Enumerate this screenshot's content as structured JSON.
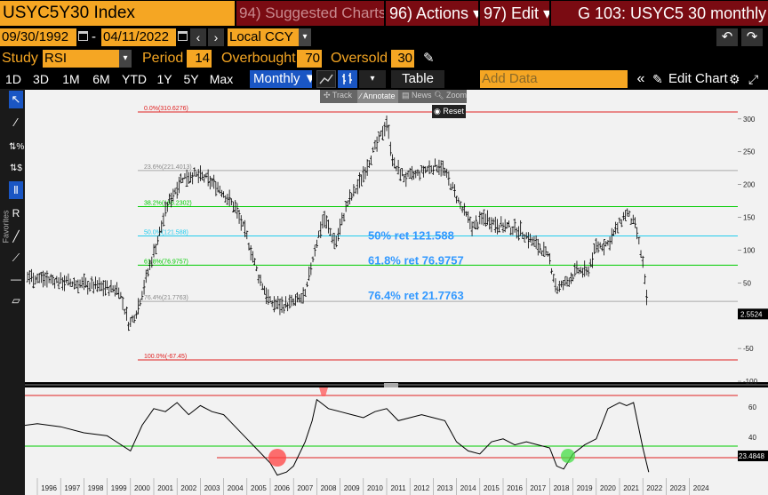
{
  "header": {
    "ticker": "USYC5Y30 Index",
    "suggested": "94) Suggested Charts",
    "actions": "96) Actions ▾",
    "edit": "97) Edit ▾",
    "gtitle": "G 103: USYC5 30 monthly"
  },
  "range": {
    "start": "09/30/1992",
    "end": "04/11/2022",
    "currency": "Local CCY"
  },
  "study": {
    "label": "Study",
    "name": "RSI",
    "period_label": "Period",
    "period": "14",
    "overbought_label": "Overbought",
    "overbought": "70",
    "oversold_label": "Oversold",
    "oversold": "30"
  },
  "toolbar": {
    "periods": [
      "1D",
      "3D",
      "1M",
      "6M",
      "YTD",
      "1Y",
      "5Y",
      "Max"
    ],
    "frequency": "Monthly ▼",
    "table": "Table",
    "add_data_placeholder": "Add Data",
    "edit_chart": "Edit Chart"
  },
  "float_tools": {
    "track": "Track",
    "annotate": "Annotate",
    "news": "News",
    "zoom": "Zoom",
    "reset": "Reset"
  },
  "left_tools": {
    "favorites": "Favorites"
  },
  "colors": {
    "orange": "#f5a623",
    "darkred": "#7a0b12",
    "blue_accent": "#1a56c4",
    "annotation_blue": "#3399ff",
    "fib_red": "#e02020",
    "fib_green": "#00cc00",
    "fib_cyan": "#22ccee",
    "fib_gray": "#aaaaaa"
  },
  "chart_data": [
    {
      "type": "ohlc",
      "x_years": [
        "1996",
        "1997",
        "1998",
        "1999",
        "2000",
        "2001",
        "2002",
        "2003",
        "2004",
        "2005",
        "2006",
        "2007",
        "2008",
        "2009",
        "2010",
        "2011",
        "2012",
        "2013",
        "2014",
        "2015",
        "2016",
        "2017",
        "2018",
        "2019",
        "2020",
        "2021",
        "2022",
        "2023",
        "2024"
      ],
      "ylim": [
        -100,
        310
      ],
      "y_ticks": [
        300,
        250,
        200,
        150,
        100,
        50,
        -50,
        -100
      ],
      "last_value_label": "2.5524",
      "series": {
        "x": [
          1992.75,
          1993.5,
          1994.5,
          1995.5,
          1996.5,
          1997.5,
          1998.5,
          1999.5,
          1999.95,
          2000.3,
          2000.7,
          2001.2,
          2001.6,
          2002.2,
          2002.7,
          2003.2,
          2003.8,
          2004.5,
          2005.0,
          2005.5,
          2006.0,
          2006.5,
          2007.0,
          2007.5,
          2007.9,
          2008.3,
          2008.8,
          2009.3,
          2009.8,
          2010.3,
          2010.7,
          2011.0,
          2011.3,
          2011.8,
          2012.3,
          2012.8,
          2013.3,
          2013.7,
          2014.2,
          2014.7,
          2015.2,
          2015.7,
          2016.2,
          2016.7,
          2017.2,
          2017.7,
          2018.0,
          2018.3,
          2018.7,
          2019.2,
          2019.6,
          2020.0,
          2020.5,
          2021.0,
          2021.3,
          2021.7,
          2022.0,
          2022.25
        ],
        "y": [
          80,
          70,
          65,
          60,
          55,
          50,
          45,
          40,
          -15,
          10,
          60,
          120,
          170,
          210,
          215,
          210,
          195,
          165,
          120,
          60,
          20,
          15,
          20,
          30,
          100,
          150,
          110,
          170,
          200,
          240,
          270,
          295,
          230,
          210,
          215,
          225,
          230,
          205,
          165,
          135,
          150,
          140,
          135,
          130,
          115,
          100,
          85,
          40,
          50,
          70,
          65,
          105,
          110,
          140,
          158,
          135,
          80,
          -5
        ]
      },
      "fibonacci": [
        {
          "label": "0.0%(310.6276)",
          "value": 310.6276,
          "color": "red"
        },
        {
          "label": "23.6%(221.4013)",
          "value": 221.4013,
          "color": "gray"
        },
        {
          "label": "38.2%(166.2302)",
          "value": 166.2302,
          "color": "green"
        },
        {
          "label": "50.0%(121.588)",
          "value": 121.588,
          "color": "cyan"
        },
        {
          "label": "61.8%(76.9757)",
          "value": 76.9757,
          "color": "green"
        },
        {
          "label": "76.4%(21.7763)",
          "value": 21.7763,
          "color": "gray"
        },
        {
          "label": "100.0%(-67.45)",
          "value": -67.45,
          "color": "red"
        }
      ],
      "annotations": [
        "50% ret 121.588",
        "61.8% ret 76.9757",
        "76.4% ret 21.7763"
      ]
    },
    {
      "type": "line",
      "name": "RSI",
      "ylim": [
        20,
        80
      ],
      "y_ticks": [
        60,
        40
      ],
      "overbought": 70,
      "oversold": 30,
      "last_value_label": "23.4848",
      "x": [
        1992.75,
        1994,
        1995,
        1996,
        1997,
        1998,
        1999,
        2000,
        2000.5,
        2001,
        2001.5,
        2002,
        2002.5,
        2003,
        2003.5,
        2004,
        2004.5,
        2005,
        2005.5,
        2006,
        2006.3,
        2006.7,
        2007,
        2007.5,
        2007.8,
        2008,
        2008.5,
        2009,
        2009.5,
        2010,
        2010.5,
        2011,
        2011.5,
        2012,
        2012.5,
        2013,
        2013.5,
        2014,
        2014.5,
        2015,
        2015.5,
        2016,
        2016.5,
        2017,
        2017.5,
        2018,
        2018.3,
        2018.6,
        2019,
        2019.5,
        2020,
        2020.5,
        2021,
        2021.3,
        2021.6,
        2022,
        2022.25
      ],
      "y": [
        55,
        55,
        54,
        56,
        54,
        50,
        48,
        38,
        55,
        66,
        64,
        70,
        62,
        68,
        64,
        62,
        54,
        46,
        38,
        30,
        22,
        24,
        28,
        44,
        58,
        72,
        66,
        64,
        62,
        60,
        64,
        66,
        58,
        60,
        62,
        60,
        58,
        44,
        38,
        36,
        44,
        46,
        42,
        44,
        42,
        40,
        28,
        26,
        36,
        42,
        46,
        66,
        70,
        68,
        70,
        40,
        24
      ]
    }
  ]
}
